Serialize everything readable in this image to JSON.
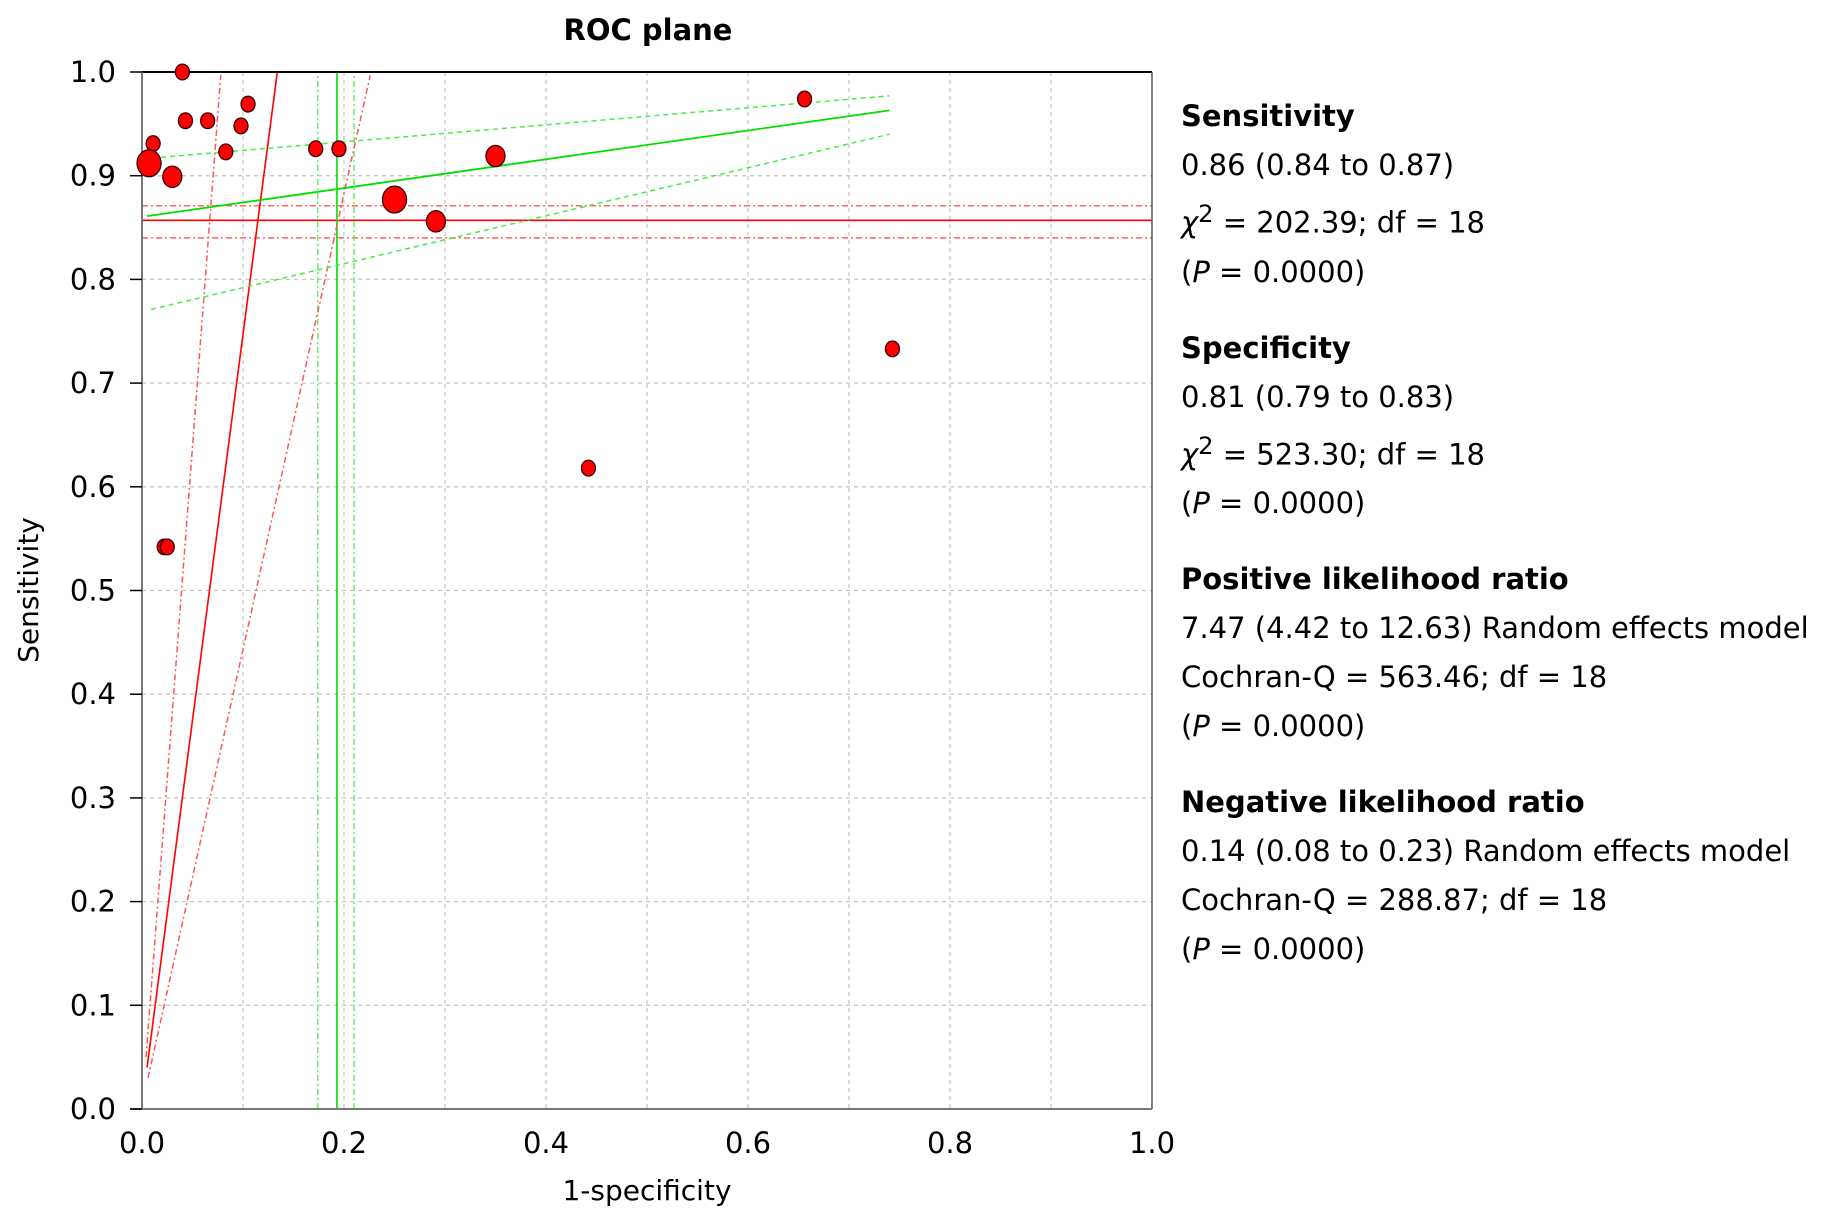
{
  "chart_data": {
    "type": "scatter",
    "title": "ROC plane",
    "xlabel": "1-specificity",
    "ylabel": "Sensitivity",
    "xlim": [
      0,
      1
    ],
    "ylim": [
      0,
      1
    ],
    "grid": true,
    "x_ticks": [
      "0.0",
      "0.2",
      "0.4",
      "0.6",
      "0.8",
      "1.0"
    ],
    "y_ticks": [
      "0.0",
      "0.1",
      "0.2",
      "0.3",
      "0.4",
      "0.5",
      "0.6",
      "0.7",
      "0.8",
      "0.9",
      "1.0"
    ],
    "points": [
      {
        "x": 0.04,
        "y": 1.0,
        "weight": "small"
      },
      {
        "x": 0.043,
        "y": 0.953,
        "weight": "small"
      },
      {
        "x": 0.065,
        "y": 0.953,
        "weight": "small"
      },
      {
        "x": 0.105,
        "y": 0.969,
        "weight": "small"
      },
      {
        "x": 0.098,
        "y": 0.948,
        "weight": "small"
      },
      {
        "x": 0.011,
        "y": 0.931,
        "weight": "small"
      },
      {
        "x": 0.007,
        "y": 0.912,
        "weight": "large"
      },
      {
        "x": 0.03,
        "y": 0.899,
        "weight": "medium"
      },
      {
        "x": 0.083,
        "y": 0.923,
        "weight": "small"
      },
      {
        "x": 0.172,
        "y": 0.926,
        "weight": "small"
      },
      {
        "x": 0.195,
        "y": 0.926,
        "weight": "small"
      },
      {
        "x": 0.35,
        "y": 0.919,
        "weight": "medium"
      },
      {
        "x": 0.25,
        "y": 0.877,
        "weight": "large"
      },
      {
        "x": 0.291,
        "y": 0.856,
        "weight": "medium"
      },
      {
        "x": 0.656,
        "y": 0.974,
        "weight": "small"
      },
      {
        "x": 0.743,
        "y": 0.733,
        "weight": "small"
      },
      {
        "x": 0.442,
        "y": 0.618,
        "weight": "small"
      },
      {
        "x": 0.022,
        "y": 0.542,
        "weight": "small"
      },
      {
        "x": 0.025,
        "y": 0.542,
        "weight": "small"
      }
    ],
    "pooled_sensitivity": {
      "value": 0.857,
      "ci": [
        0.84,
        0.871
      ]
    },
    "pooled_one_minus_specificity": {
      "value": 0.193,
      "ci": [
        0.174,
        0.21
      ]
    },
    "positive_lr_line": {
      "center": [
        [
          0.005,
          0.04
        ],
        [
          0.134,
          1.0
        ]
      ],
      "lower": [
        [
          0.004,
          0.05
        ],
        [
          0.078,
          0.997
        ]
      ],
      "upper": [
        [
          0.006,
          0.03
        ],
        [
          0.226,
          0.997
        ]
      ]
    },
    "sroc_line": {
      "center": [
        [
          0.005,
          0.861
        ],
        [
          0.74,
          0.963
        ]
      ],
      "upper": [
        [
          0.01,
          0.917
        ],
        [
          0.74,
          0.977
        ]
      ],
      "lower": [
        [
          0.009,
          0.771
        ],
        [
          0.74,
          0.94
        ]
      ]
    },
    "colors": {
      "point": "#ff0000",
      "pooled": "#ff0000",
      "sroc": "#00e000",
      "grid": "#c8c8c8"
    }
  },
  "stats": [
    {
      "heading": "Sensitivity",
      "estimate": "0.86 (0.84 to 0.87)",
      "test_prefix": "χ",
      "test_sup": "2",
      "test_rest": " = 202.39; df = 18",
      "p_open": "(",
      "p_sym": "P",
      "p_rest": " = 0.0000)"
    },
    {
      "heading": "Specificity",
      "estimate": "0.81 (0.79 to 0.83)",
      "test_prefix": "χ",
      "test_sup": "2",
      "test_rest": " = 523.30; df = 18",
      "p_open": "(",
      "p_sym": "P",
      "p_rest": " = 0.0000)"
    },
    {
      "heading": "Positive likelihood ratio",
      "estimate": "7.47 (4.42 to 12.63) Random effects model",
      "test_prefix": "",
      "test_sup": "",
      "test_rest": "Cochran-Q = 563.46; df = 18",
      "p_open": "(",
      "p_sym": "P",
      "p_rest": " = 0.0000)"
    },
    {
      "heading": "Negative likelihood ratio",
      "estimate": "0.14 (0.08 to 0.23) Random effects model",
      "test_prefix": "",
      "test_sup": "",
      "test_rest": "Cochran-Q = 288.87; df = 18",
      "p_open": "(",
      "p_sym": "P",
      "p_rest": " = 0.0000)"
    }
  ]
}
